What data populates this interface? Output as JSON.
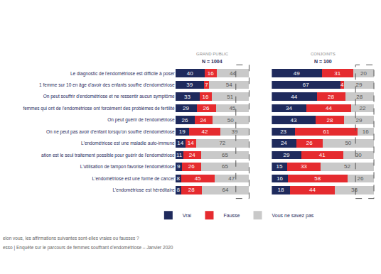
{
  "chart_data": [
    {
      "type": "bar",
      "orientation": "horizontal",
      "stacked": true,
      "data_labels": true,
      "tick_labels": "y",
      "legend": "bottom",
      "title": "GRAND PUBLIC",
      "subtitle": "N = 1004",
      "categories": [
        "Le diagnostic de l'endométriose est difficile à poser",
        "1 femme sur 10 en âge d'avoir des enfants souffre d'endométriose",
        "On peut souffrir d'endométriose et ne ressentir aucun symptôme",
        "femmes qui ont de l'endométriose ont forcément des problèmes de fertilité",
        "On peut guérir de l'endométriose",
        "On ne peut pas avoir d'enfant lorsqu'on souffre d'endométriose",
        "L'endométriose est une maladie auto-immune",
        "ation est le seul traitement possible pour guérir de l'endométriose",
        "L'utilisation de tampon favorise l'endométriose",
        "L'endométriose est une forme de cancer",
        "L'endométriose est héréditaire"
      ],
      "xlim": [
        0,
        100
      ],
      "series": [
        {
          "name": "Vrai",
          "color": "#1f2a5c",
          "values": [
            40,
            39,
            33,
            29,
            26,
            19,
            14,
            11,
            9,
            8,
            8
          ]
        },
        {
          "name": "Fausse",
          "color": "#e52b2f",
          "values": [
            16,
            7,
            16,
            26,
            24,
            42,
            14,
            24,
            26,
            45,
            28
          ]
        },
        {
          "name": "Vous ne savez pas",
          "color": "#c9c9c9",
          "values": [
            44,
            54,
            51,
            45,
            50,
            39,
            72,
            65,
            65,
            47,
            64
          ]
        }
      ]
    },
    {
      "type": "bar",
      "orientation": "horizontal",
      "stacked": true,
      "data_labels": true,
      "tick_labels": false,
      "title": "CONJOINTS",
      "subtitle": "N = 100",
      "categories": [
        "Le diagnostic de l'endométriose est difficile à poser",
        "1 femme sur 10 en âge d'avoir des enfants souffre d'endométriose",
        "On peut souffrir d'endométriose et ne ressentir aucun symptôme",
        "femmes qui ont de l'endométriose ont forcément des problèmes de fertilité",
        "On peut guérir de l'endométriose",
        "On ne peut pas avoir d'enfant lorsqu'on souffre d'endométriose",
        "L'endométriose est une maladie auto-immune",
        "ation est le seul traitement possible pour guérir de l'endométriose",
        "L'utilisation de tampon favorise l'endométriose",
        "L'endométriose est une forme de cancer",
        "L'endométriose est héréditaire"
      ],
      "xlim": [
        0,
        100
      ],
      "series": [
        {
          "name": "Vrai",
          "color": "#1f2a5c",
          "values": [
            49,
            67,
            44,
            34,
            43,
            23,
            24,
            29,
            15,
            16,
            18
          ]
        },
        {
          "name": "Fausse",
          "color": "#e52b2f",
          "values": [
            31,
            4,
            28,
            44,
            28,
            61,
            26,
            41,
            33,
            58,
            44
          ]
        },
        {
          "name": "Vous ne savez pas",
          "color": "#c9c9c9",
          "values": [
            20,
            29,
            28,
            22,
            29,
            16,
            50,
            30,
            52,
            26,
            38
          ]
        }
      ]
    }
  ],
  "annotations": [
    "elon vous, les affirmations suivantes sont-elles vraies ou fausses ?",
    "esso | Enquête sur le parcours de femmes souffrant d'endométriose – Janvier 2020"
  ]
}
